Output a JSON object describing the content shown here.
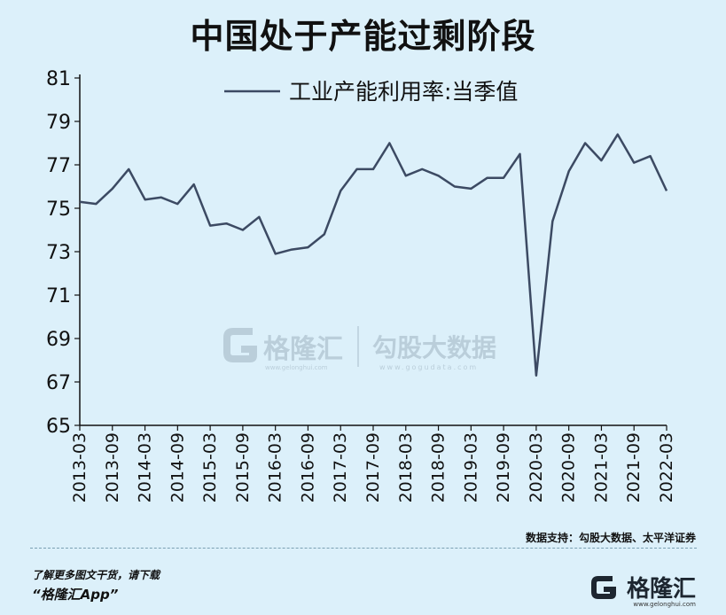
{
  "title": "中国处于产能过剩阶段",
  "watermark": {
    "brand1": "格隆汇",
    "brand1_sub": "www.gelonghui.com",
    "brand2": "勾股大数据",
    "brand2_sub": "www.gogudata.com"
  },
  "source": "数据支持：勾股大数据、太平洋证券",
  "footer": {
    "line1": "了解更多图文干货，请下载",
    "line2": "“格隆汇App”",
    "logo_text": "格隆汇",
    "logo_sub": "www.gelonghui.com"
  },
  "colors": {
    "line": "#3c4a63",
    "axis": "#111111",
    "background": "#dcf0fa",
    "watermark": "#9fb3c0"
  },
  "chart_data": {
    "type": "line",
    "title": "中国处于产能过剩阶段",
    "legend_position": "top-center",
    "grid": false,
    "ylim": [
      65,
      81
    ],
    "yticks": [
      65,
      67,
      69,
      71,
      73,
      75,
      77,
      79,
      81
    ],
    "xlim": [
      "2013-03",
      "2022-03"
    ],
    "xticks": [
      "2013-03",
      "2013-09",
      "2014-03",
      "2014-09",
      "2015-03",
      "2015-09",
      "2016-03",
      "2016-09",
      "2017-03",
      "2017-09",
      "2018-03",
      "2018-09",
      "2019-03",
      "2019-09",
      "2020-03",
      "2020-09",
      "2021-03",
      "2021-09",
      "2022-03"
    ],
    "series": [
      {
        "name": "工业产能利用率:当季值",
        "x": [
          "2013-03",
          "2013-06",
          "2013-09",
          "2013-12",
          "2014-03",
          "2014-06",
          "2014-09",
          "2014-12",
          "2015-03",
          "2015-06",
          "2015-09",
          "2015-12",
          "2016-03",
          "2016-06",
          "2016-09",
          "2016-12",
          "2017-03",
          "2017-06",
          "2017-09",
          "2017-12",
          "2018-03",
          "2018-06",
          "2018-09",
          "2018-12",
          "2019-03",
          "2019-06",
          "2019-09",
          "2019-12",
          "2020-03",
          "2020-06",
          "2020-09",
          "2020-12",
          "2021-03",
          "2021-06",
          "2021-09",
          "2021-12",
          "2022-03"
        ],
        "values": [
          75.3,
          75.2,
          75.9,
          76.8,
          75.4,
          75.5,
          75.2,
          76.1,
          74.2,
          74.3,
          74.0,
          74.6,
          72.9,
          73.1,
          73.2,
          73.8,
          75.8,
          76.8,
          76.8,
          78.0,
          76.5,
          76.8,
          76.5,
          76.0,
          75.9,
          76.4,
          76.4,
          77.5,
          67.3,
          74.4,
          76.7,
          78.0,
          77.2,
          78.4,
          77.1,
          77.4,
          75.8
        ]
      }
    ]
  }
}
